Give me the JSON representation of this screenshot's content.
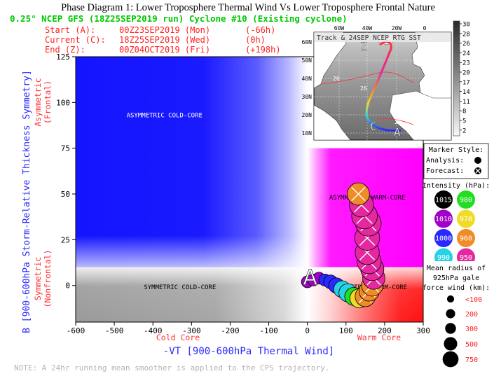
{
  "page_title": "Phase Diagram 1: Lower Troposphere Thermal Wind Vs Lower Troposphere Frontal Nature",
  "header": {
    "line1": "0.25° NCEP GFS (18Z25SEP2019 run) Cyclone #10 (Existing cyclone)",
    "start_label": "Start (A):",
    "start_time": "00Z23SEP2019 (Mon)",
    "start_offset": "(-66h)",
    "current_label": "Current (C):",
    "current_time": "18Z25SEP2019 (Wed)",
    "current_offset": "(0h)",
    "end_label": "End (Z):",
    "end_time": "00Z04OCT2019 (Fri)",
    "end_offset": "(+198h)"
  },
  "colors": {
    "cold_blue": "#1414ff",
    "warm_magenta": "#ff00ff",
    "warm_red": "#ff1a1a",
    "cold_gray": "#9e9e9e",
    "header_green": "#00c800",
    "header_red": "#ff2020",
    "axis_blue": "#2a2aff",
    "note_gray": "#b4b4b4"
  },
  "quadrants": {
    "asym_cold": "ASYMMETRIC COLD-CORE",
    "asym_warm": "ASYMMETRIC WARM-CORE",
    "sym_cold": "SYMMETRIC COLD-CORE",
    "sym_warm": "SYMMETRIC WARM-CORE"
  },
  "axis_labels": {
    "ylabel": "B [900-600hPa Storm-Relative Thickness Symmetry]",
    "y_upper": [
      "Asymmetric",
      "(Frontal)"
    ],
    "y_lower": [
      "Symmetric",
      "(Nonfrontal)"
    ],
    "xlabel": "-VT [900-600hPa Thermal Wind]",
    "x_left": "Cold Core",
    "x_right": "Warm Core"
  },
  "note": "NOTE:  A 24hr running mean smoother is applied to the CPS trajectory.",
  "inset": {
    "title": "Track & 24SEP NCEP RTG SST",
    "lon_labels": [
      "60W",
      "40W",
      "20W",
      "0"
    ],
    "lat_labels": [
      "60N",
      "50N",
      "40N",
      "30N",
      "20N",
      "10N"
    ],
    "colorbar_ticks": [
      "30",
      "28",
      "26",
      "24",
      "23",
      "20",
      "17",
      "14",
      "11",
      "8",
      "5",
      "2"
    ],
    "contour_labels": [
      "26",
      "26",
      "26"
    ],
    "track_markers": [
      "Z",
      "C",
      "A"
    ]
  },
  "legend": {
    "marker_style_title": "Marker Style:",
    "analysis_label": "Analysis:",
    "forecast_label": "Forecast:",
    "intensity_title": "Intensity (hPa):",
    "intensity": [
      {
        "label": "1015",
        "color": "#000000",
        "text_color": "#ffffff"
      },
      {
        "label": "980",
        "color": "#22dd22",
        "text_color": "#ffffff"
      },
      {
        "label": "1010",
        "color": "#a000c8",
        "text_color": "#ffffff"
      },
      {
        "label": "970",
        "color": "#f0dc28",
        "text_color": "#ffffff"
      },
      {
        "label": "1000",
        "color": "#2828ff",
        "text_color": "#ffffff"
      },
      {
        "label": "960",
        "color": "#f08c28",
        "text_color": "#ffffff"
      },
      {
        "label": "990",
        "color": "#28d2e6",
        "text_color": "#ffffff"
      },
      {
        "label": "950",
        "color": "#e628a0",
        "text_color": "#ffffff"
      }
    ],
    "radius_title": [
      "Mean radius of",
      "925hPa gale",
      "force wind (km):"
    ],
    "radius": [
      {
        "label": "<100",
        "value": 100
      },
      {
        "label": "200",
        "value": 200
      },
      {
        "label": "300",
        "value": 300
      },
      {
        "label": "500",
        "value": 500
      },
      {
        "label": "750",
        "value": 750
      }
    ]
  },
  "chart_data": {
    "type": "scatter",
    "title": "Phase Diagram 1: Lower Troposphere Thermal Wind Vs Lower Troposphere Frontal Nature",
    "xlabel": "-VT [900-600hPa Thermal Wind]",
    "ylabel": "B [900-600hPa Storm-Relative Thickness Symmetry]",
    "xlim": [
      -600,
      300
    ],
    "ylim": [
      -20,
      125
    ],
    "x_ticks": [
      -600,
      -500,
      -400,
      -300,
      -200,
      -100,
      0,
      100,
      200,
      300
    ],
    "y_ticks": [
      0,
      25,
      50,
      75,
      100,
      125
    ],
    "start_marker": {
      "label": "A",
      "x": 0,
      "y": 2
    },
    "trajectory": [
      {
        "x": 0,
        "y": 2,
        "marker": "analysis",
        "pressure": 1010,
        "radius_km": 100
      },
      {
        "x": 15,
        "y": 3,
        "marker": "analysis",
        "pressure": 1010,
        "radius_km": 100
      },
      {
        "x": 30,
        "y": 4,
        "marker": "analysis",
        "pressure": 1010,
        "radius_km": 100
      },
      {
        "x": 45,
        "y": 3,
        "marker": "analysis",
        "pressure": 1000,
        "radius_km": 100
      },
      {
        "x": 60,
        "y": 2,
        "marker": "analysis",
        "pressure": 1000,
        "radius_km": 150
      },
      {
        "x": 75,
        "y": 0,
        "marker": "analysis",
        "pressure": 1000,
        "radius_km": 200
      },
      {
        "x": 90,
        "y": -2,
        "marker": "analysis",
        "pressure": 990,
        "radius_km": 250
      },
      {
        "x": 105,
        "y": -4,
        "marker": "analysis",
        "pressure": 990,
        "radius_km": 300
      },
      {
        "x": 120,
        "y": -6,
        "marker": "analysis",
        "pressure": 980,
        "radius_km": 300
      },
      {
        "x": 135,
        "y": -7,
        "marker": "analysis",
        "pressure": 970,
        "radius_km": 350
      },
      {
        "x": 150,
        "y": -6,
        "marker": "forecast",
        "pressure": 960,
        "radius_km": 400
      },
      {
        "x": 160,
        "y": -3,
        "marker": "forecast",
        "pressure": 960,
        "radius_km": 400
      },
      {
        "x": 168,
        "y": 0,
        "marker": "forecast",
        "pressure": 960,
        "radius_km": 450
      },
      {
        "x": 172,
        "y": 4,
        "marker": "forecast",
        "pressure": 950,
        "radius_km": 500
      },
      {
        "x": 168,
        "y": 9,
        "marker": "forecast",
        "pressure": 950,
        "radius_km": 550
      },
      {
        "x": 160,
        "y": 13,
        "marker": "forecast",
        "pressure": 950,
        "radius_km": 600
      },
      {
        "x": 155,
        "y": 18,
        "marker": "forecast",
        "pressure": 950,
        "radius_km": 600
      },
      {
        "x": 155,
        "y": 26,
        "marker": "forecast",
        "pressure": 950,
        "radius_km": 650
      },
      {
        "x": 158,
        "y": 34,
        "marker": "forecast",
        "pressure": 950,
        "radius_km": 700
      },
      {
        "x": 148,
        "y": 38,
        "marker": "forecast",
        "pressure": 950,
        "radius_km": 700
      },
      {
        "x": 140,
        "y": 44,
        "marker": "forecast",
        "pressure": 950,
        "radius_km": 600
      },
      {
        "x": 132,
        "y": 50,
        "marker": "forecast",
        "pressure": 960,
        "radius_km": 500
      }
    ]
  }
}
